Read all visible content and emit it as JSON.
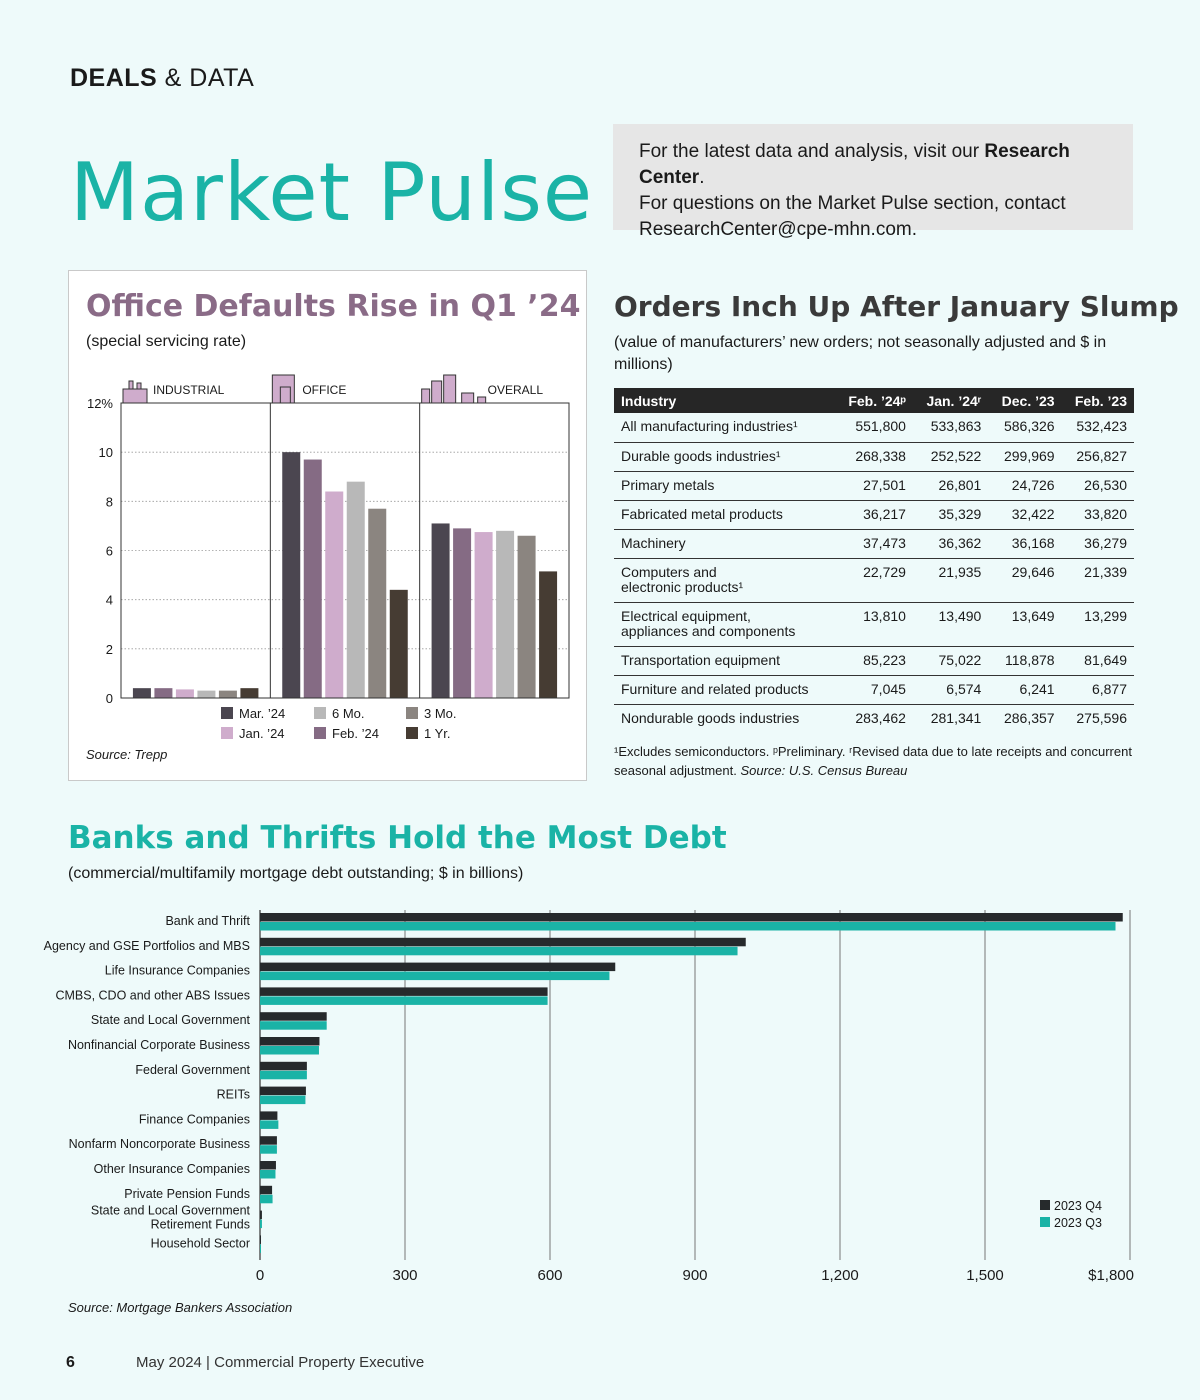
{
  "header": {
    "section_bold": "DEALS",
    "section_rest": " & DATA",
    "title": "Market Pulse"
  },
  "info_box": {
    "line1_prefix": "For the latest data and analysis, visit our ",
    "line1_bold": "Research Center",
    "line1_suffix": ".",
    "line2": "For questions on the Market Pulse section, contact",
    "line3": "ResearchCenter@cpe-mhn.com."
  },
  "footer": {
    "page_number": "6",
    "text": "May 2024  |  Commercial Property Executive"
  },
  "colors": {
    "teal": "#1ab3a6",
    "mauve": "#8a6b87",
    "dark": "#262626"
  },
  "chart_data": [
    {
      "type": "bar",
      "title": "Office Defaults Rise in Q1 ’24",
      "subtitle": "(special servicing rate)",
      "source": "Source: Trepp",
      "categories": [
        "INDUSTRIAL",
        "OFFICE",
        "OVERALL"
      ],
      "category_icons": [
        "industrial-building-icon",
        "office-building-icon",
        "skyline-icon"
      ],
      "y_ticks": [
        "12%",
        "10",
        "8",
        "6",
        "4",
        "2",
        "0"
      ],
      "ylim": [
        0,
        12
      ],
      "series": [
        {
          "name": "Mar. ’24",
          "color": "#4b4650",
          "values": [
            0.4,
            10.0,
            7.1
          ]
        },
        {
          "name": "Feb. ’24",
          "color": "#856b84",
          "values": [
            0.4,
            9.7,
            6.9
          ]
        },
        {
          "name": "Jan. ’24",
          "color": "#cfaccc",
          "values": [
            0.35,
            8.4,
            6.75
          ]
        },
        {
          "name": "6 Mo.",
          "color": "#b8b8b8",
          "values": [
            0.3,
            8.8,
            6.8
          ]
        },
        {
          "name": "3 Mo.",
          "color": "#8b8580",
          "values": [
            0.3,
            7.7,
            6.6
          ]
        },
        {
          "name": "1 Yr.",
          "color": "#463c33",
          "values": [
            0.4,
            4.4,
            5.15
          ]
        }
      ],
      "legend_order": [
        0,
        2,
        3,
        1,
        4,
        5
      ],
      "legend_placement": "bottom"
    },
    {
      "type": "table",
      "title": "Orders Inch Up After January Slump",
      "subtitle": "(value of manufacturers’ new orders; not seasonally adjusted and $ in millions)",
      "columns": [
        "Industry",
        "Feb. ’24ᵖ",
        "Jan. ’24ʳ",
        "Dec. ’23",
        "Feb. ’23"
      ],
      "rows": [
        {
          "label": [
            "All manufacturing industries¹"
          ],
          "values": [
            "551,800",
            "533,863",
            "586,326",
            "532,423"
          ]
        },
        {
          "label": [
            "Durable goods industries¹"
          ],
          "values": [
            "268,338",
            "252,522",
            "299,969",
            "256,827"
          ]
        },
        {
          "label": [
            "Primary metals"
          ],
          "values": [
            "27,501",
            "26,801",
            "24,726",
            "26,530"
          ]
        },
        {
          "label": [
            "Fabricated metal products"
          ],
          "values": [
            "36,217",
            "35,329",
            "32,422",
            "33,820"
          ]
        },
        {
          "label": [
            "Machinery"
          ],
          "values": [
            "37,473",
            "36,362",
            "36,168",
            "36,279"
          ]
        },
        {
          "label": [
            "Computers and",
            "electronic products¹"
          ],
          "values": [
            "22,729",
            "21,935",
            "29,646",
            "21,339"
          ]
        },
        {
          "label": [
            "Electrical equipment,",
            "appliances and components"
          ],
          "values": [
            "13,810",
            "13,490",
            "13,649",
            "13,299"
          ]
        },
        {
          "label": [
            "Transportation equipment"
          ],
          "values": [
            "85,223",
            "75,022",
            "118,878",
            "81,649"
          ]
        },
        {
          "label": [
            "Furniture and related products"
          ],
          "values": [
            "7,045",
            "6,574",
            "6,241",
            "6,877"
          ]
        },
        {
          "label": [
            "Nondurable goods industries"
          ],
          "values": [
            "283,462",
            "281,341",
            "286,357",
            "275,596"
          ]
        }
      ],
      "note_line1": "¹Excludes semiconductors. ᵖPreliminary. ʳRevised data due to late receipts and concurrent",
      "note_line2_prefix": "seasonal adjustment. ",
      "note_source": "Source: U.S. Census Bureau"
    },
    {
      "type": "bar",
      "orientation": "horizontal",
      "title": "Banks and Thrifts Hold the Most Debt",
      "subtitle": "(commercial/multifamily mortgage debt outstanding; $ in billions)",
      "source": "Source: Mortgage Bankers Association",
      "categories": [
        [
          "Bank and Thrift"
        ],
        [
          "Agency and GSE Portfolios and MBS"
        ],
        [
          "Life Insurance Companies"
        ],
        [
          "CMBS, CDO and other ABS Issues"
        ],
        [
          "State and Local Government"
        ],
        [
          "Nonfinancial Corporate Business"
        ],
        [
          "Federal Government"
        ],
        [
          "REITs"
        ],
        [
          "Finance Companies"
        ],
        [
          "Nonfarm Noncorporate Business"
        ],
        [
          "Other Insurance Companies"
        ],
        [
          "Private Pension Funds"
        ],
        [
          "State and Local Government",
          "Retirement Funds"
        ],
        [
          "Household Sector"
        ]
      ],
      "x_ticks": [
        "0",
        "300",
        "600",
        "900",
        "1,200",
        "1,500",
        "$1,800"
      ],
      "xlim": [
        0,
        1800
      ],
      "legend_placement": "bottom-right",
      "series": [
        {
          "name": "2023 Q4",
          "color": "#262a2c",
          "values": [
            1785,
            1005,
            735,
            595,
            138,
            123,
            97,
            95,
            36,
            35,
            33,
            25,
            4,
            1
          ]
        },
        {
          "name": "2023 Q3",
          "color": "#1ab3a6",
          "values": [
            1770,
            988,
            723,
            595,
            138,
            122,
            97,
            94,
            38,
            35,
            32,
            26,
            4,
            1
          ]
        }
      ]
    }
  ]
}
